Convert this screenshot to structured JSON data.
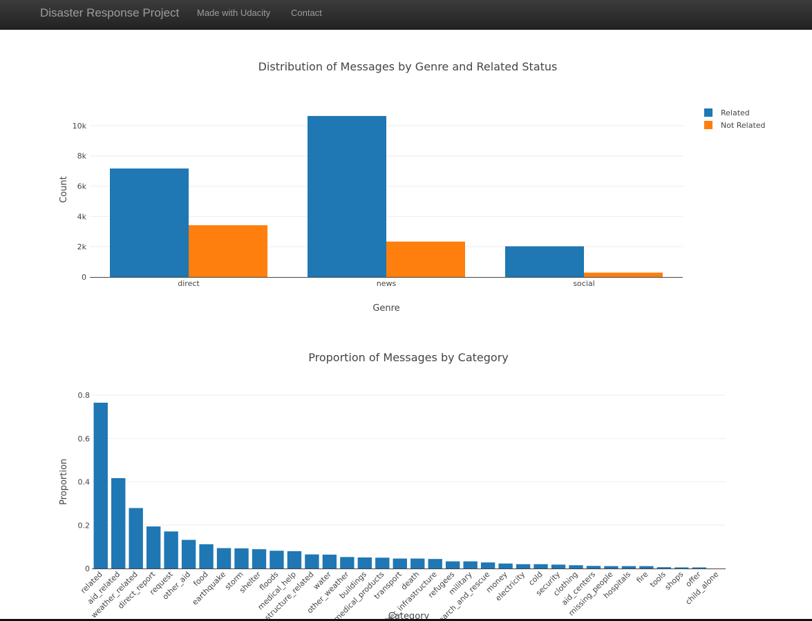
{
  "navbar": {
    "brand": "Disaster Response Project",
    "links": [
      "Made with Udacity",
      "Contact"
    ]
  },
  "colors": {
    "related": "#1f77b4",
    "not_related": "#ff7f0e",
    "grid": "#eeeeee",
    "text": "#444444"
  },
  "chart_data": [
    {
      "type": "bar",
      "title": "Distribution of Messages by Genre and Related Status",
      "xlabel": "Genre",
      "ylabel": "Count",
      "categories": [
        "direct",
        "news",
        "social"
      ],
      "series": [
        {
          "name": "Related",
          "values": [
            7170,
            10640,
            2030
          ],
          "color": "#1f77b4"
        },
        {
          "name": "Not Related",
          "values": [
            3420,
            2340,
            290
          ],
          "color": "#ff7f0e"
        }
      ],
      "ylim": [
        0,
        11000
      ],
      "yticks": [
        0,
        2000,
        4000,
        6000,
        8000,
        10000
      ],
      "ytick_labels": [
        "0",
        "2k",
        "4k",
        "6k",
        "8k",
        "10k"
      ],
      "grid": true,
      "legend": "top-right"
    },
    {
      "type": "bar",
      "title": "Proportion of Messages by Category",
      "xlabel": "Category",
      "ylabel": "Proportion",
      "categories": [
        "related",
        "aid_related",
        "weather_related",
        "direct_report",
        "request",
        "other_aid",
        "food",
        "earthquake",
        "storm",
        "shelter",
        "floods",
        "medical_help",
        "infrastructure_related",
        "water",
        "other_weather",
        "buildings",
        "medical_products",
        "transport",
        "death",
        "other_infrastructure",
        "refugees",
        "military",
        "search_and_rescue",
        "money",
        "electricity",
        "cold",
        "security",
        "clothing",
        "aid_centers",
        "missing_people",
        "hospitals",
        "fire",
        "tools",
        "shops",
        "offer",
        "child_alone"
      ],
      "values": [
        0.765,
        0.417,
        0.279,
        0.194,
        0.171,
        0.132,
        0.112,
        0.094,
        0.093,
        0.089,
        0.082,
        0.08,
        0.065,
        0.064,
        0.053,
        0.051,
        0.05,
        0.046,
        0.046,
        0.044,
        0.033,
        0.033,
        0.028,
        0.023,
        0.02,
        0.02,
        0.018,
        0.015,
        0.012,
        0.011,
        0.011,
        0.011,
        0.006,
        0.005,
        0.005,
        0.0
      ],
      "ylim": [
        0,
        0.8
      ],
      "yticks": [
        0,
        0.2,
        0.4,
        0.6,
        0.8
      ],
      "ytick_labels": [
        "0",
        "0.2",
        "0.4",
        "0.6",
        "0.8"
      ],
      "grid": true,
      "color": "#1f77b4"
    }
  ]
}
